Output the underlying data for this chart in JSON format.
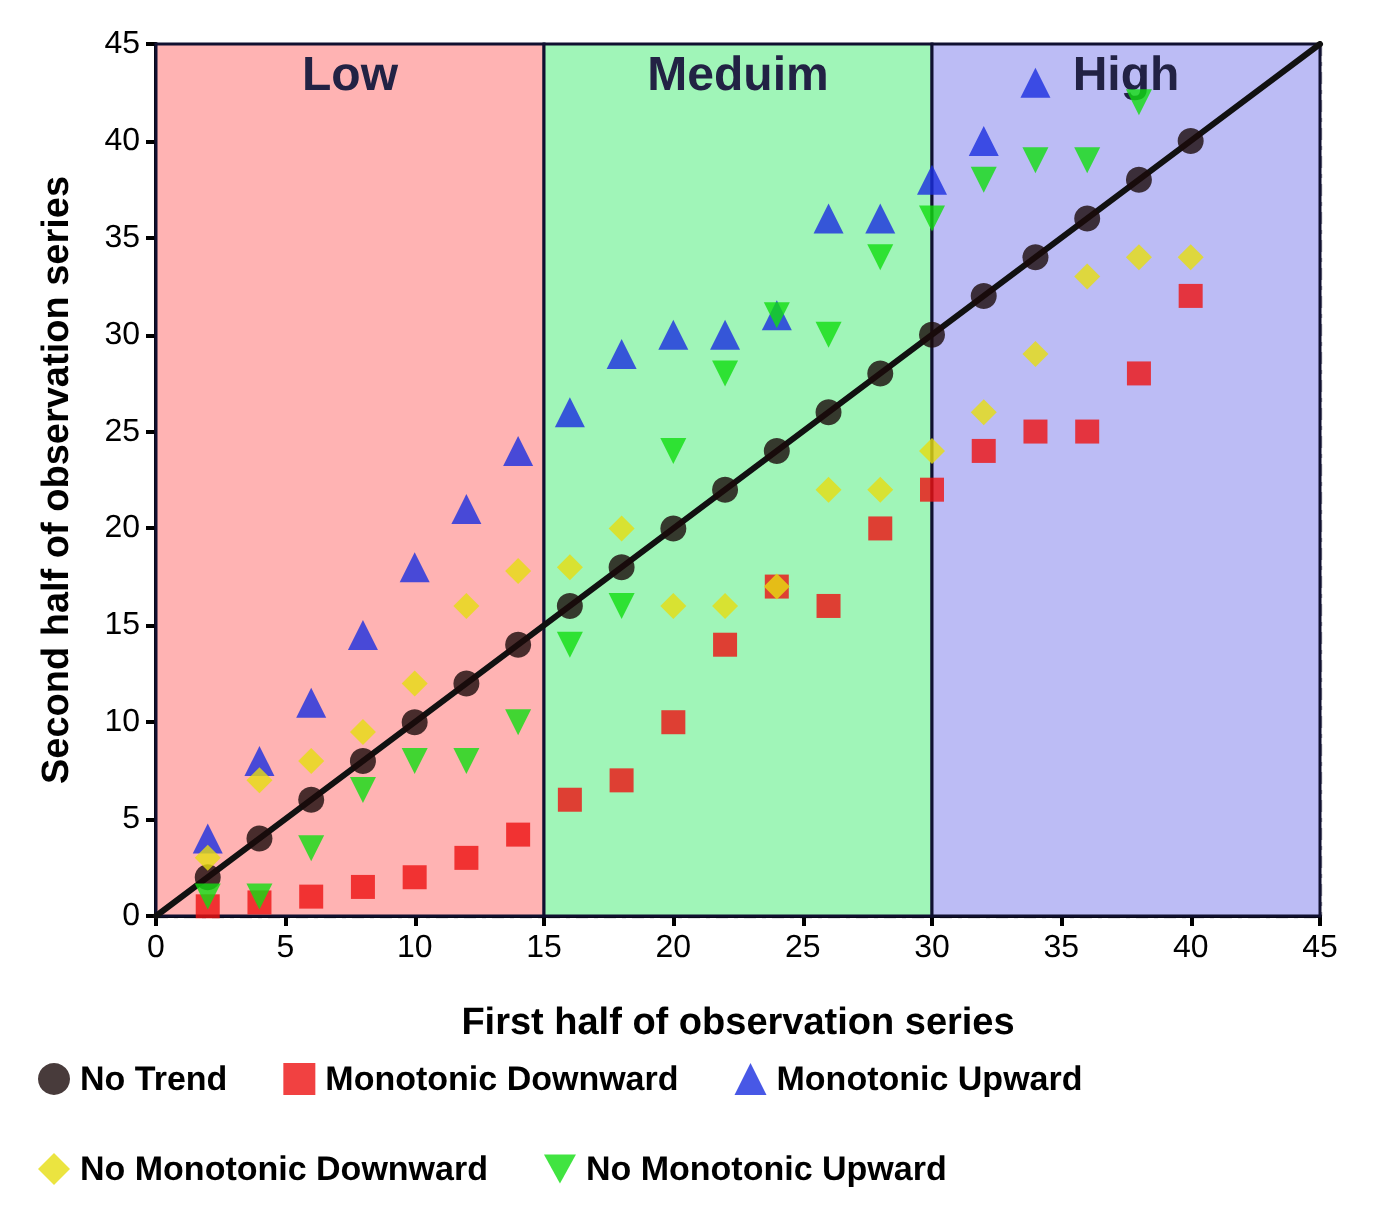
{
  "chart_data": {
    "type": "scatter",
    "xlabel": "First half of observation series",
    "ylabel": "Second half of observation series",
    "xlim": [
      0,
      45
    ],
    "ylim": [
      0,
      45
    ],
    "xticks": [
      0,
      5,
      10,
      15,
      20,
      25,
      30,
      35,
      40,
      45
    ],
    "yticks": [
      0,
      5,
      10,
      15,
      20,
      25,
      30,
      35,
      40,
      45
    ],
    "grid": true,
    "legend": "bottom",
    "bands": [
      {
        "axis": "x",
        "from": 0,
        "to": 15,
        "label": "Low",
        "color": "#ffb3b3"
      },
      {
        "axis": "x",
        "from": 15,
        "to": 30,
        "label": "Meduim",
        "color": "#a0f5b8"
      },
      {
        "axis": "x",
        "from": 30,
        "to": 45,
        "label": "High",
        "color": "#bcbcf5"
      }
    ],
    "series": [
      {
        "name": "No Trend",
        "color": "#1a0a0a",
        "marker": "circle",
        "x": [
          2,
          4,
          6,
          8,
          10,
          12,
          14,
          16,
          18,
          20,
          22,
          24,
          26,
          28,
          30,
          32,
          34,
          36,
          38,
          40
        ],
        "values": [
          2,
          4,
          6,
          8,
          10,
          12,
          14,
          16,
          18,
          20,
          22,
          24,
          26,
          28,
          30,
          32,
          34,
          36,
          38,
          40
        ]
      },
      {
        "name": "Monotonic Downward",
        "color": "#ee1111",
        "marker": "square",
        "x": [
          2,
          4,
          6,
          8,
          10,
          12,
          14,
          16,
          18,
          20,
          22,
          24,
          26,
          28,
          30,
          32,
          34,
          36,
          38,
          40
        ],
        "values": [
          0.5,
          0.7,
          1,
          1.5,
          2,
          3,
          4.2,
          6,
          7,
          10,
          14,
          17,
          16,
          20,
          22,
          24,
          25,
          25,
          28,
          32
        ]
      },
      {
        "name": "Monotonic Upward",
        "color": "#1a2ee0",
        "marker": "triangle",
        "x": [
          2,
          4,
          6,
          8,
          10,
          12,
          14,
          16,
          18,
          20,
          22,
          24,
          26,
          28,
          30,
          32,
          34
        ],
        "values": [
          4,
          8,
          11,
          14.5,
          18,
          21,
          24,
          26,
          29,
          30,
          30,
          31,
          36,
          36,
          38,
          40,
          43
        ]
      },
      {
        "name": "No Monotonic Downward",
        "color": "#e6dd10",
        "marker": "diamond",
        "x": [
          2,
          4,
          6,
          8,
          10,
          12,
          14,
          16,
          18,
          20,
          22,
          24,
          26,
          28,
          30,
          32,
          34,
          36,
          38,
          40
        ],
        "values": [
          3,
          7,
          8,
          9.5,
          12,
          16,
          17.8,
          18,
          20,
          16,
          16,
          17,
          22,
          22,
          24,
          26,
          29,
          33,
          34,
          34
        ]
      },
      {
        "name": "No Monotonic Upward",
        "color": "#11dd11",
        "marker": "triangle-down",
        "x": [
          2,
          4,
          6,
          8,
          10,
          12,
          14,
          16,
          18,
          20,
          22,
          24,
          26,
          28,
          30,
          32,
          34,
          36,
          38
        ],
        "values": [
          1,
          1,
          3.5,
          6.5,
          8,
          8,
          10,
          14,
          16,
          24,
          28,
          31,
          30,
          34,
          36,
          38,
          39,
          39,
          42
        ]
      },
      {
        "type": "line",
        "color": "#111111",
        "marker": "none",
        "x": [
          0,
          45
        ],
        "values": [
          0,
          45
        ]
      }
    ]
  }
}
